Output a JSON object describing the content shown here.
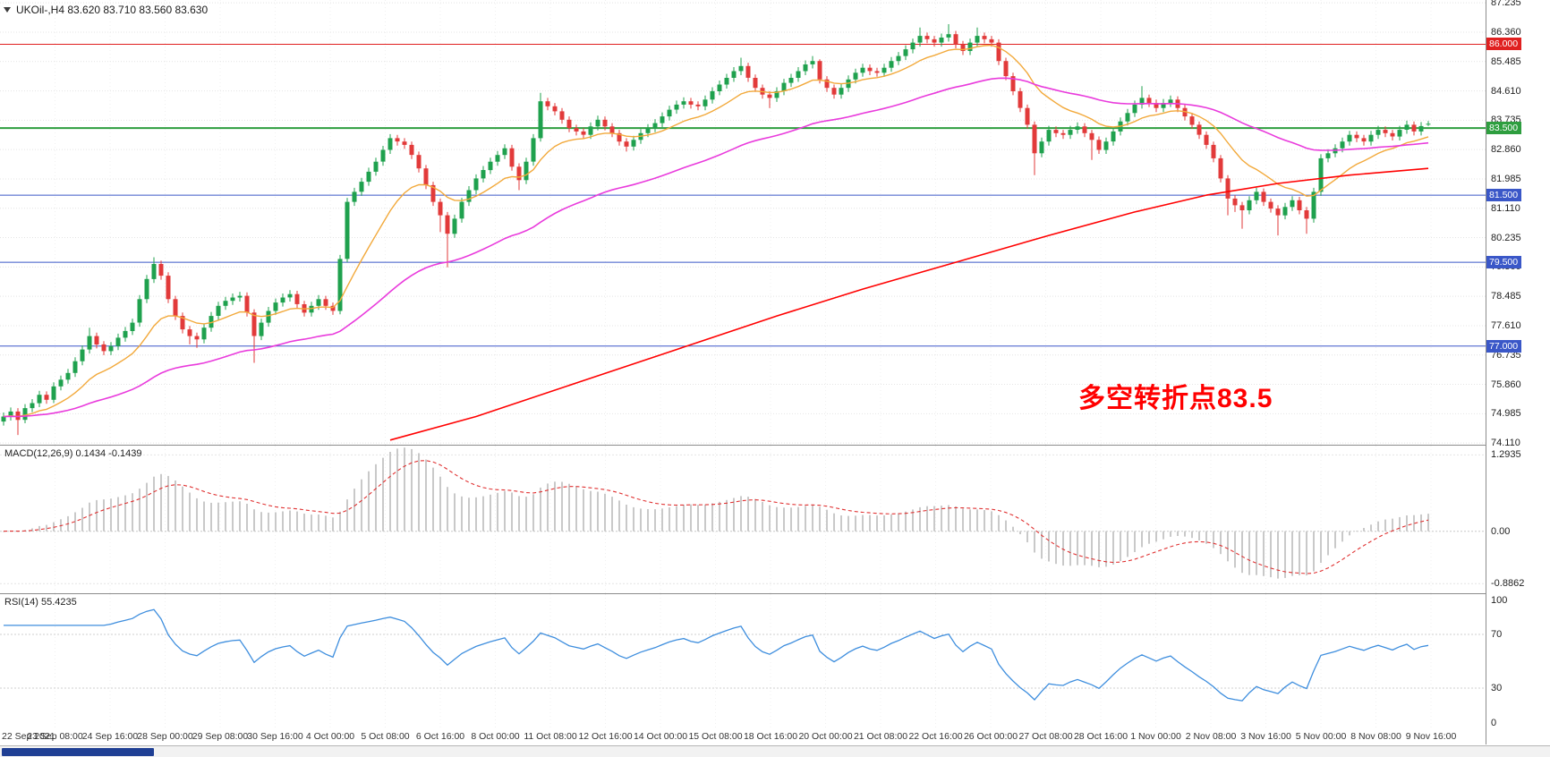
{
  "chart": {
    "title": "UKOil-,H4  83.620 83.710 83.560 83.630",
    "annotation": {
      "text": "多空转折点83.5"
    },
    "colors": {
      "up": "#1FA14E",
      "down": "#E23A3A",
      "ma_fast": "#F2A93B",
      "ma_mid": "#E93BDC",
      "ma_slow": "#FF0000",
      "level_red": "#E02020",
      "level_green": "#2E9E3F",
      "level_blue": "#3A57C8",
      "macd_hist": "#C9C9C9",
      "macd_signal": "#E03131",
      "rsi": "#3E8EDE",
      "annotation": "#FF0000",
      "grid": "#E4E4E4",
      "separator": "#8C8C8C",
      "scroll_thumb": "#1F3F94"
    }
  },
  "macd_panel": {
    "label": "MACD(12,26,9) 0.1434 -0.1439"
  },
  "rsi_panel": {
    "label": "RSI(14) 55.4235"
  },
  "chart_data": {
    "type": "candlestick",
    "symbol": "UKOil-",
    "timeframe": "H4",
    "last_ohlc": {
      "open": 83.62,
      "high": 83.71,
      "low": 83.56,
      "close": 83.63
    },
    "price_range": [
      74.06,
      87.32
    ],
    "y_ticks": [
      87.235,
      86.36,
      85.485,
      84.61,
      83.735,
      82.86,
      81.985,
      81.11,
      80.235,
      79.36,
      78.485,
      77.61,
      76.735,
      75.86,
      74.985,
      74.11
    ],
    "levels": [
      {
        "price": 86.0,
        "label": "86.000",
        "color": "#E02020",
        "width": 1
      },
      {
        "price": 83.5,
        "label": "83.500",
        "color": "#2E9E3F",
        "width": 2
      },
      {
        "price": 81.5,
        "label": "81.500",
        "color": "#3A57C8",
        "width": 1
      },
      {
        "price": 79.5,
        "label": "79.500",
        "color": "#3A57C8",
        "width": 1
      },
      {
        "price": 77.0,
        "label": "77.000",
        "color": "#3A57C8",
        "width": 1
      }
    ],
    "x_labels": [
      "22 Sep 2021",
      "23 Sep 08:00",
      "24 Sep 16:00",
      "28 Sep 00:00",
      "29 Sep 08:00",
      "30 Sep 16:00",
      "4 Oct 00:00",
      "5 Oct 08:00",
      "6 Oct 16:00",
      "8 Oct 00:00",
      "11 Oct 08:00",
      "12 Oct 16:00",
      "14 Oct 00:00",
      "15 Oct 08:00",
      "18 Oct 16:00",
      "20 Oct 00:00",
      "21 Oct 08:00",
      "22 Oct 16:00",
      "26 Oct 00:00",
      "27 Oct 08:00",
      "28 Oct 16:00",
      "1 Nov 00:00",
      "2 Nov 08:00",
      "3 Nov 16:00",
      "5 Nov 00:00",
      "8 Nov 08:00",
      "9 Nov 16:00"
    ],
    "overlays": {
      "ma_fast": {
        "type": "ema",
        "period": 13,
        "color": "#F2A93B"
      },
      "ma_mid": {
        "type": "ema",
        "period": 50,
        "color": "#E93BDC"
      },
      "ma_slow": {
        "type": "points",
        "color": "#FF0000",
        "points": [
          [
            54,
            74.2
          ],
          [
            66,
            74.9
          ],
          [
            80,
            75.9
          ],
          [
            94,
            76.9
          ],
          [
            108,
            77.9
          ],
          [
            120,
            78.7
          ],
          [
            133,
            79.5
          ],
          [
            146,
            80.3
          ],
          [
            158,
            81.0
          ],
          [
            168,
            81.5
          ],
          [
            178,
            81.85
          ],
          [
            188,
            82.1
          ],
          [
            199,
            82.3
          ]
        ]
      }
    },
    "indicators": {
      "macd": {
        "name": "MACD",
        "params": [
          12,
          26,
          9
        ],
        "display_values": [
          0.1434,
          -0.1439
        ],
        "ylim": [
          -1.05,
          1.45
        ],
        "ticks": [
          {
            "v": 1.2935,
            "label": "1.2935"
          },
          {
            "v": 0,
            "label": "0.00"
          },
          {
            "v": -0.8862,
            "label": "-0.8862"
          }
        ]
      },
      "rsi": {
        "name": "RSI",
        "params": [
          14
        ],
        "display_value": 55.4235,
        "ylim": [
          0,
          100
        ],
        "levels": [
          70,
          30
        ],
        "ticks": [
          {
            "v": 100,
            "label": "100"
          },
          {
            "v": 70,
            "label": "70"
          },
          {
            "v": 30,
            "label": "30"
          },
          {
            "v": 0,
            "label": "0"
          }
        ]
      }
    },
    "candles": [
      [
        74.75,
        75.02,
        74.63,
        74.9
      ],
      [
        74.9,
        75.17,
        74.78,
        75.05
      ],
      [
        75.05,
        75.15,
        74.35,
        74.8
      ],
      [
        74.8,
        75.27,
        74.7,
        75.15
      ],
      [
        75.15,
        75.42,
        75.03,
        75.3
      ],
      [
        75.3,
        75.67,
        75.18,
        75.55
      ],
      [
        75.55,
        75.65,
        75.28,
        75.4
      ],
      [
        75.4,
        75.92,
        75.3,
        75.8
      ],
      [
        75.8,
        76.12,
        75.68,
        76.0
      ],
      [
        76.0,
        76.32,
        75.88,
        76.2
      ],
      [
        76.2,
        76.67,
        76.08,
        76.55
      ],
      [
        76.55,
        77.02,
        76.43,
        76.9
      ],
      [
        76.9,
        77.55,
        76.78,
        77.3
      ],
      [
        77.3,
        77.4,
        76.93,
        77.05
      ],
      [
        77.05,
        77.15,
        76.73,
        76.85
      ],
      [
        76.85,
        77.12,
        76.73,
        77.0
      ],
      [
        77.0,
        77.37,
        76.88,
        77.25
      ],
      [
        77.25,
        77.57,
        77.13,
        77.45
      ],
      [
        77.45,
        77.82,
        77.33,
        77.7
      ],
      [
        77.7,
        78.52,
        77.58,
        78.4
      ],
      [
        78.4,
        79.12,
        78.28,
        79.0
      ],
      [
        79.0,
        79.65,
        78.88,
        79.45
      ],
      [
        79.45,
        79.55,
        78.98,
        79.1
      ],
      [
        79.1,
        79.2,
        78.28,
        78.4
      ],
      [
        78.4,
        78.5,
        77.78,
        77.9
      ],
      [
        77.9,
        78.0,
        77.38,
        77.5
      ],
      [
        77.5,
        77.6,
        77.05,
        77.3
      ],
      [
        77.3,
        77.4,
        76.95,
        77.2
      ],
      [
        77.2,
        77.67,
        77.08,
        77.55
      ],
      [
        77.55,
        78.02,
        77.43,
        77.9
      ],
      [
        77.9,
        78.32,
        77.78,
        78.2
      ],
      [
        78.2,
        78.47,
        78.08,
        78.35
      ],
      [
        78.35,
        78.57,
        78.23,
        78.45
      ],
      [
        78.45,
        78.62,
        78.33,
        78.5
      ],
      [
        78.5,
        78.6,
        77.88,
        78.0
      ],
      [
        78.0,
        78.1,
        76.5,
        77.3
      ],
      [
        77.3,
        77.82,
        77.18,
        77.7
      ],
      [
        77.7,
        78.17,
        77.58,
        78.05
      ],
      [
        78.05,
        78.42,
        77.93,
        78.3
      ],
      [
        78.3,
        78.57,
        78.18,
        78.45
      ],
      [
        78.45,
        78.67,
        78.33,
        78.55
      ],
      [
        78.55,
        78.65,
        78.13,
        78.25
      ],
      [
        78.25,
        78.35,
        77.88,
        78.0
      ],
      [
        78.0,
        78.32,
        77.88,
        78.2
      ],
      [
        78.2,
        78.52,
        78.08,
        78.4
      ],
      [
        78.4,
        78.5,
        78.08,
        78.2
      ],
      [
        78.2,
        78.3,
        77.93,
        78.05
      ],
      [
        78.05,
        79.72,
        77.95,
        79.6
      ],
      [
        79.6,
        81.42,
        79.5,
        81.3
      ],
      [
        81.3,
        81.72,
        81.18,
        81.6
      ],
      [
        81.6,
        82.02,
        81.48,
        81.9
      ],
      [
        81.9,
        82.32,
        81.78,
        82.2
      ],
      [
        82.2,
        82.62,
        82.08,
        82.5
      ],
      [
        82.5,
        82.97,
        82.38,
        82.85
      ],
      [
        82.85,
        83.32,
        82.73,
        83.2
      ],
      [
        83.2,
        83.3,
        82.98,
        83.1
      ],
      [
        83.1,
        83.2,
        82.88,
        83.0
      ],
      [
        83.0,
        83.1,
        82.58,
        82.7
      ],
      [
        82.7,
        82.8,
        82.18,
        82.3
      ],
      [
        82.3,
        82.4,
        81.68,
        81.8
      ],
      [
        81.8,
        81.9,
        81.18,
        81.3
      ],
      [
        81.3,
        81.4,
        80.4,
        80.9
      ],
      [
        80.9,
        81.0,
        79.35,
        80.35
      ],
      [
        80.35,
        80.92,
        80.23,
        80.8
      ],
      [
        80.8,
        81.42,
        80.68,
        81.3
      ],
      [
        81.3,
        81.77,
        81.18,
        81.65
      ],
      [
        81.65,
        82.12,
        81.53,
        82.0
      ],
      [
        82.0,
        82.37,
        81.88,
        82.25
      ],
      [
        82.25,
        82.62,
        82.13,
        82.5
      ],
      [
        82.5,
        82.82,
        82.38,
        82.7
      ],
      [
        82.7,
        83.02,
        82.58,
        82.9
      ],
      [
        82.9,
        83.0,
        82.23,
        82.35
      ],
      [
        82.35,
        82.45,
        81.65,
        81.95
      ],
      [
        81.95,
        82.62,
        81.83,
        82.5
      ],
      [
        82.5,
        83.32,
        82.38,
        83.2
      ],
      [
        83.2,
        84.55,
        83.1,
        84.3
      ],
      [
        84.3,
        84.4,
        84.03,
        84.15
      ],
      [
        84.15,
        84.25,
        83.88,
        84.0
      ],
      [
        84.0,
        84.1,
        83.63,
        83.75
      ],
      [
        83.75,
        83.85,
        83.38,
        83.5
      ],
      [
        83.5,
        83.6,
        83.28,
        83.4
      ],
      [
        83.4,
        83.5,
        83.18,
        83.3
      ],
      [
        83.3,
        83.67,
        83.18,
        83.55
      ],
      [
        83.55,
        83.87,
        83.43,
        83.75
      ],
      [
        83.75,
        83.85,
        83.43,
        83.55
      ],
      [
        83.55,
        83.65,
        83.23,
        83.35
      ],
      [
        83.35,
        83.45,
        82.98,
        83.1
      ],
      [
        83.1,
        83.2,
        82.8,
        82.95
      ],
      [
        82.95,
        83.27,
        82.83,
        83.15
      ],
      [
        83.15,
        83.47,
        83.03,
        83.35
      ],
      [
        83.35,
        83.62,
        83.23,
        83.5
      ],
      [
        83.5,
        83.77,
        83.38,
        83.65
      ],
      [
        83.65,
        83.97,
        83.53,
        83.85
      ],
      [
        83.85,
        84.17,
        83.73,
        84.05
      ],
      [
        84.05,
        84.32,
        83.93,
        84.2
      ],
      [
        84.2,
        84.42,
        84.08,
        84.3
      ],
      [
        84.3,
        84.4,
        84.08,
        84.2
      ],
      [
        84.2,
        84.3,
        84.03,
        84.15
      ],
      [
        84.15,
        84.47,
        84.03,
        84.35
      ],
      [
        84.35,
        84.72,
        84.23,
        84.6
      ],
      [
        84.6,
        84.92,
        84.48,
        84.8
      ],
      [
        84.8,
        85.12,
        84.68,
        85.0
      ],
      [
        85.0,
        85.32,
        84.88,
        85.2
      ],
      [
        85.2,
        85.6,
        85.08,
        85.35
      ],
      [
        85.35,
        85.45,
        84.88,
        85.0
      ],
      [
        85.0,
        85.1,
        84.58,
        84.7
      ],
      [
        84.7,
        84.8,
        84.38,
        84.5
      ],
      [
        84.5,
        84.6,
        84.1,
        84.4
      ],
      [
        84.4,
        84.72,
        84.28,
        84.6
      ],
      [
        84.6,
        84.97,
        84.48,
        84.85
      ],
      [
        84.85,
        85.12,
        84.73,
        85.0
      ],
      [
        85.0,
        85.32,
        84.88,
        85.2
      ],
      [
        85.2,
        85.52,
        85.08,
        85.4
      ],
      [
        85.4,
        85.65,
        85.28,
        85.5
      ],
      [
        85.5,
        85.55,
        84.83,
        84.95
      ],
      [
        84.95,
        85.05,
        84.58,
        84.7
      ],
      [
        84.7,
        84.8,
        84.38,
        84.5
      ],
      [
        84.5,
        84.82,
        84.38,
        84.7
      ],
      [
        84.7,
        85.07,
        84.58,
        84.95
      ],
      [
        84.95,
        85.27,
        84.83,
        85.15
      ],
      [
        85.15,
        85.42,
        85.03,
        85.3
      ],
      [
        85.3,
        85.4,
        85.08,
        85.2
      ],
      [
        85.2,
        85.3,
        85.03,
        85.15
      ],
      [
        85.15,
        85.42,
        85.03,
        85.3
      ],
      [
        85.3,
        85.62,
        85.18,
        85.5
      ],
      [
        85.5,
        85.77,
        85.38,
        85.65
      ],
      [
        85.65,
        85.97,
        85.53,
        85.85
      ],
      [
        85.85,
        86.17,
        85.73,
        86.05
      ],
      [
        86.05,
        86.5,
        85.93,
        86.25
      ],
      [
        86.25,
        86.35,
        86.03,
        86.15
      ],
      [
        86.15,
        86.25,
        85.93,
        86.05
      ],
      [
        86.05,
        86.32,
        85.93,
        86.2
      ],
      [
        86.2,
        86.6,
        86.08,
        86.3
      ],
      [
        86.3,
        86.4,
        85.88,
        86.0
      ],
      [
        86.0,
        86.1,
        85.68,
        85.8
      ],
      [
        85.8,
        86.17,
        85.68,
        86.05
      ],
      [
        86.05,
        86.5,
        85.93,
        86.25
      ],
      [
        86.25,
        86.35,
        86.03,
        86.15
      ],
      [
        86.15,
        86.25,
        85.93,
        86.05
      ],
      [
        86.05,
        86.15,
        85.38,
        85.5
      ],
      [
        85.5,
        85.6,
        84.93,
        85.05
      ],
      [
        85.05,
        85.15,
        84.48,
        84.6
      ],
      [
        84.6,
        84.7,
        83.98,
        84.1
      ],
      [
        84.1,
        84.2,
        83.48,
        83.6
      ],
      [
        83.6,
        83.7,
        82.1,
        82.75
      ],
      [
        82.75,
        83.22,
        82.63,
        83.1
      ],
      [
        83.1,
        83.57,
        82.98,
        83.45
      ],
      [
        83.45,
        83.55,
        83.23,
        83.35
      ],
      [
        83.35,
        83.45,
        83.18,
        83.3
      ],
      [
        83.3,
        83.57,
        83.18,
        83.45
      ],
      [
        83.45,
        83.67,
        83.33,
        83.55
      ],
      [
        83.55,
        83.65,
        83.23,
        83.35
      ],
      [
        83.35,
        83.45,
        82.55,
        83.15
      ],
      [
        83.15,
        83.25,
        82.73,
        82.85
      ],
      [
        82.85,
        83.22,
        82.73,
        83.1
      ],
      [
        83.1,
        83.52,
        82.98,
        83.4
      ],
      [
        83.4,
        83.82,
        83.28,
        83.7
      ],
      [
        83.7,
        84.07,
        83.58,
        83.95
      ],
      [
        83.95,
        84.32,
        83.83,
        84.2
      ],
      [
        84.2,
        84.75,
        84.08,
        84.4
      ],
      [
        84.4,
        84.5,
        84.13,
        84.25
      ],
      [
        84.25,
        84.35,
        83.98,
        84.1
      ],
      [
        84.1,
        84.37,
        83.98,
        84.25
      ],
      [
        84.25,
        84.47,
        84.13,
        84.35
      ],
      [
        84.35,
        84.45,
        83.98,
        84.1
      ],
      [
        84.1,
        84.2,
        83.73,
        83.85
      ],
      [
        83.85,
        83.95,
        83.48,
        83.6
      ],
      [
        83.6,
        83.7,
        83.18,
        83.3
      ],
      [
        83.3,
        83.4,
        82.88,
        83.0
      ],
      [
        83.0,
        83.1,
        82.48,
        82.6
      ],
      [
        82.6,
        82.7,
        81.88,
        82.0
      ],
      [
        82.0,
        82.1,
        80.9,
        81.4
      ],
      [
        81.4,
        81.5,
        81.0,
        81.2
      ],
      [
        81.2,
        81.3,
        80.5,
        81.05
      ],
      [
        81.05,
        81.47,
        80.93,
        81.35
      ],
      [
        81.35,
        81.72,
        81.23,
        81.6
      ],
      [
        81.6,
        81.7,
        81.18,
        81.3
      ],
      [
        81.3,
        81.4,
        80.98,
        81.1
      ],
      [
        81.1,
        81.2,
        80.3,
        80.9
      ],
      [
        80.9,
        81.27,
        80.78,
        81.15
      ],
      [
        81.15,
        81.47,
        81.03,
        81.35
      ],
      [
        81.35,
        81.45,
        80.93,
        81.05
      ],
      [
        81.05,
        81.15,
        80.35,
        80.8
      ],
      [
        80.8,
        81.72,
        80.68,
        81.6
      ],
      [
        81.6,
        82.72,
        81.48,
        82.6
      ],
      [
        82.6,
        82.87,
        82.48,
        82.75
      ],
      [
        82.75,
        83.02,
        82.63,
        82.9
      ],
      [
        82.9,
        83.22,
        82.78,
        83.1
      ],
      [
        83.1,
        83.42,
        82.98,
        83.3
      ],
      [
        83.3,
        83.4,
        83.08,
        83.2
      ],
      [
        83.2,
        83.3,
        82.98,
        83.1
      ],
      [
        83.1,
        83.42,
        82.98,
        83.3
      ],
      [
        83.3,
        83.57,
        83.18,
        83.45
      ],
      [
        83.45,
        83.55,
        83.23,
        83.35
      ],
      [
        83.35,
        83.45,
        83.13,
        83.25
      ],
      [
        83.25,
        83.57,
        83.13,
        83.45
      ],
      [
        83.45,
        83.72,
        83.33,
        83.6
      ],
      [
        83.6,
        83.7,
        83.28,
        83.4
      ],
      [
        83.4,
        83.68,
        83.28,
        83.56
      ],
      [
        83.62,
        83.71,
        83.56,
        83.63
      ]
    ]
  }
}
